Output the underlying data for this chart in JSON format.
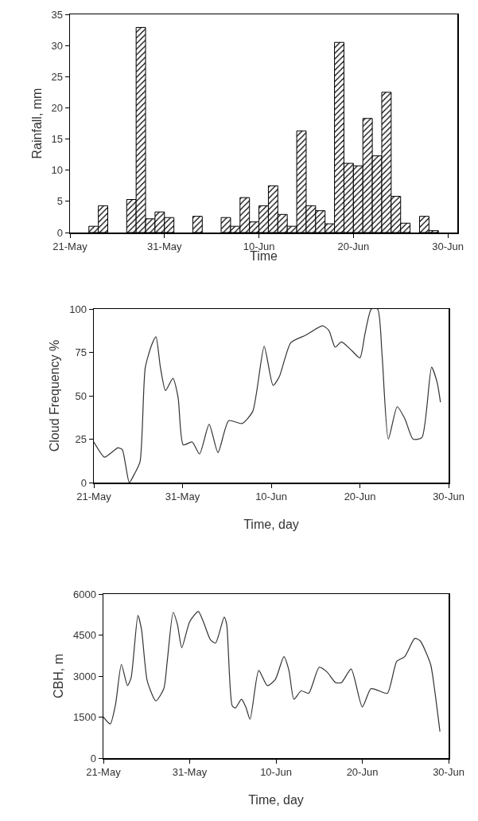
{
  "chart_data": [
    {
      "type": "bar",
      "xlabel": "Time",
      "ylabel": "Rainfall, mm",
      "color": "#000000",
      "x": [
        "--05-23T12:00",
        "--05-24T12:00",
        "--05-27T12:00",
        "--05-28T12:00",
        "--05-29T12:00",
        "--05-30T12:00",
        "--05-31T12:00",
        "--06-03T12:00",
        "--06-06T12:00",
        "--06-07T12:00",
        "--06-08T12:00",
        "--06-09T12:00",
        "--06-10T12:00",
        "--06-11T12:00",
        "--06-12T12:00",
        "--06-13T12:00",
        "--06-14T12:00",
        "--06-15T12:00",
        "--06-16T12:00",
        "--06-17T12:00",
        "--06-18T12:00",
        "--06-19T12:00",
        "--06-20T12:00",
        "--06-21T12:00",
        "--06-22T12:00",
        "--06-23T12:00",
        "--06-24T12:00",
        "--06-25T12:00",
        "--06-27T12:00",
        "--06-28T12:00"
      ],
      "values": [
        1.0,
        4.3,
        5.3,
        32.9,
        2.2,
        3.3,
        2.4,
        2.6,
        2.4,
        1.0,
        5.6,
        1.7,
        4.3,
        7.5,
        2.9,
        1.0,
        16.3,
        4.3,
        3.5,
        1.4,
        30.5,
        11.1,
        10.7,
        18.3,
        12.3,
        22.5,
        5.8,
        1.5,
        2.6,
        0.3
      ],
      "xlim": [
        "--05-21",
        "--07-01"
      ],
      "xticks": [
        {
          "value": "--05-21",
          "label": "21-May"
        },
        {
          "value": "--05-31",
          "label": "31-May"
        },
        {
          "value": "--06-10",
          "label": "10-Jun"
        },
        {
          "value": "--06-20",
          "label": "20-Jun"
        },
        {
          "value": "--06-30",
          "label": "30-Jun"
        }
      ],
      "ylim": [
        0,
        35
      ],
      "yticks": [
        0,
        5,
        10,
        15,
        20,
        25,
        30,
        35
      ]
    },
    {
      "type": "line",
      "xlabel": "Time, day",
      "ylabel": "Cloud Frequency %",
      "color": "#333333",
      "x": [
        "--05-21T00:00",
        "--05-22T05:00",
        "--05-22T22:00",
        "--05-23T17:00",
        "--05-24T05:00",
        "--05-24T14:00",
        "--05-25T00:00",
        "--05-25T14:00",
        "--05-26T05:00",
        "--05-26T19:00",
        "--05-27T12:00",
        "--05-28T00:00",
        "--05-28T12:00",
        "--05-29T02:00",
        "--05-29T22:00",
        "--05-30T12:00",
        "--05-31T02:00",
        "--06-01T02:00",
        "--06-01T22:00",
        "--06-03T00:00",
        "--06-04T00:00",
        "--06-05T05:00",
        "--06-06T17:00",
        "--06-07T22:00",
        "--06-09T05:00",
        "--06-10T05:00",
        "--06-10T22:00",
        "--06-12T05:00",
        "--06-13T22:00",
        "--06-15T19:00",
        "--06-16T12:00",
        "--06-17T05:00",
        "--06-17T22:00",
        "--06-19T02:00",
        "--06-20T00:00",
        "--06-20T14:00",
        "--06-21T07:00",
        "--06-22T00:00",
        "--06-22T12:00",
        "--06-23T05:00",
        "--06-24T05:00",
        "--06-25T02:00",
        "--06-26T00:00",
        "--06-27T00:00",
        "--06-28T02:00",
        "--06-28T17:00",
        "--06-29T02:00"
      ],
      "values": [
        23.4,
        14.6,
        17,
        20,
        19,
        10,
        0,
        5,
        12,
        66,
        79,
        84,
        66.5,
        53,
        60,
        49,
        21.7,
        23.4,
        16.4,
        33.5,
        17.3,
        35.7,
        34,
        41,
        78.5,
        56,
        61,
        80.6,
        85,
        90.3,
        87.7,
        78,
        81,
        76,
        71.8,
        86,
        100,
        100,
        73.6,
        25,
        43.7,
        36.6,
        25,
        26,
        66.5,
        57.7,
        46.3
      ],
      "xlim": [
        "--05-21",
        "--06-30"
      ],
      "xticks": [
        {
          "value": "--05-21",
          "label": "21-May"
        },
        {
          "value": "--05-31",
          "label": "31-May"
        },
        {
          "value": "--06-10",
          "label": "10-Jun"
        },
        {
          "value": "--06-20",
          "label": "20-Jun"
        },
        {
          "value": "--06-30",
          "label": "30-Jun"
        }
      ],
      "ylim": [
        0,
        100
      ],
      "yticks": [
        0,
        25,
        50,
        75,
        100
      ]
    },
    {
      "type": "line",
      "xlabel": "Time, day",
      "ylabel": "CBH, m",
      "color": "#333333",
      "x": [
        "--05-21T00:00",
        "--05-21T19:00",
        "--05-22T10:00",
        "--05-23T02:00",
        "--05-23T19:00",
        "--05-24T05:00",
        "--05-25T00:00",
        "--05-25T10:00",
        "--05-26T02:00",
        "--05-27T02:00",
        "--05-28T00:00",
        "--05-28T10:00",
        "--05-29T02:00",
        "--05-29T14:00",
        "--05-30T02:00",
        "--05-31T00:00",
        "--06-01T00:00",
        "--06-01T14:00",
        "--06-02T10:00",
        "--06-03T00:00",
        "--06-04T00:00",
        "--06-04T07:00",
        "--06-04T22:00",
        "--06-05T07:00",
        "--06-06T00:00",
        "--06-06T12:00",
        "--06-07T00:00",
        "--06-08T00:00",
        "--06-09T00:00",
        "--06-09T22:00",
        "--06-10T22:00",
        "--06-11T12:00",
        "--06-12T02:00",
        "--06-12T22:00",
        "--06-13T19:00",
        "--06-15T00:00",
        "--06-15T22:00",
        "--06-16T22:00",
        "--06-17T14:00",
        "--06-18T17:00",
        "--06-20T00:00",
        "--06-21T00:00",
        "--06-21T22:00",
        "--06-22T22:00",
        "--06-24T00:00",
        "--06-24T22:00",
        "--06-26T02:00",
        "--06-26T17:00",
        "--06-27T22:00",
        "--06-28T10:00",
        "--06-29T00:00"
      ],
      "values": [
        1500,
        1250,
        1980,
        3430,
        2650,
        2930,
        5220,
        4710,
        2820,
        2090,
        2540,
        3600,
        5330,
        4880,
        4040,
        4990,
        5360,
        4990,
        4320,
        4210,
        5160,
        4880,
        1920,
        1830,
        2150,
        1870,
        1420,
        3210,
        2650,
        2870,
        3710,
        3210,
        2150,
        2460,
        2370,
        3320,
        3150,
        2760,
        2760,
        3260,
        1870,
        2540,
        2460,
        2370,
        3540,
        3710,
        4380,
        4290,
        3430,
        2420,
        970
      ],
      "xlim": [
        "--05-21",
        "--06-30"
      ],
      "xticks": [
        {
          "value": "--05-21",
          "label": "21-May"
        },
        {
          "value": "--05-31",
          "label": "31-May"
        },
        {
          "value": "--06-10",
          "label": "10-Jun"
        },
        {
          "value": "--06-20",
          "label": "20-Jun"
        },
        {
          "value": "--06-30",
          "label": "30-Jun"
        }
      ],
      "ylim": [
        0,
        6000
      ],
      "yticks": [
        0,
        1500,
        3000,
        4500,
        6000
      ]
    }
  ]
}
